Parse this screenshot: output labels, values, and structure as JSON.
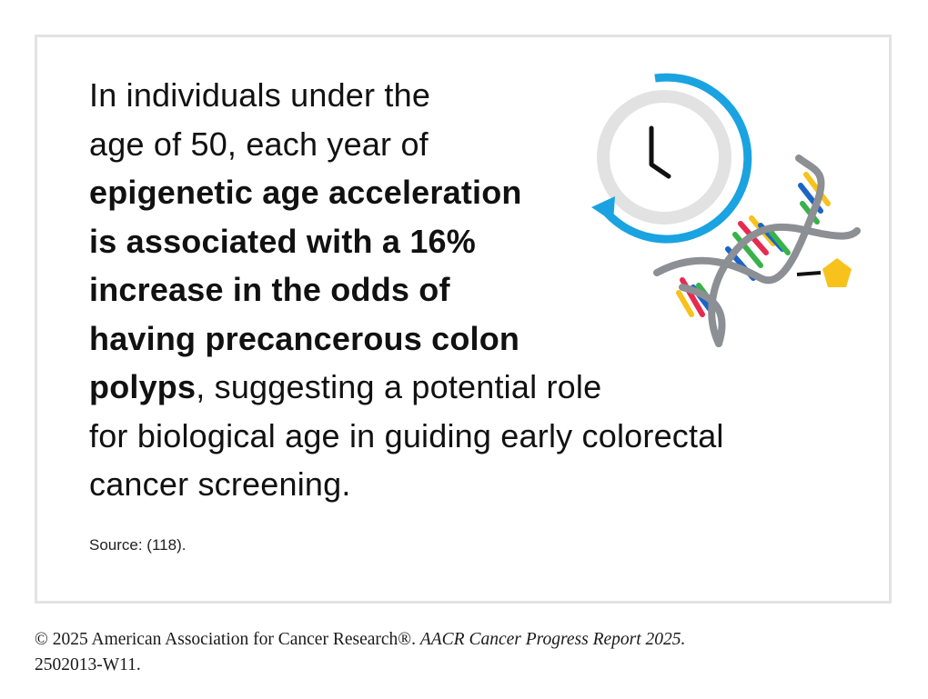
{
  "statement": {
    "line1": "In individuals under the",
    "line2": "age of 50, each year of",
    "bold_line3": "epigenetic age acceleration",
    "bold_line4": "is associated with a 16%",
    "bold_line5": "increase in the odds of",
    "bold_line6": "having precancerous colon",
    "bold_line7_start": "polyps",
    "line7_rest": ", suggesting a potential role",
    "line8": "for biological age in guiding early colorectal",
    "line9": "cancer screening."
  },
  "source": "Source: (118).",
  "footer": {
    "copyright": "© 2025 American Association for Cancer Research®. ",
    "report_title": "AACR Cancer Progress Report 2025.",
    "code": "2502013-W11."
  },
  "illustration": {
    "icons": [
      "clock-icon",
      "dna-helix-icon",
      "pentagon-molecule-icon"
    ],
    "colors": {
      "clock_ring": "#e2e2e2",
      "clock_arrow": "#1aa3e0",
      "clock_hands": "#111111",
      "dna_backbone": "#8c8f93",
      "rung_red": "#e62b4e",
      "rung_yellow": "#f7c21b",
      "rung_blue": "#1c64c6",
      "rung_green": "#38b24a",
      "pentagon": "#f7c21b"
    }
  }
}
